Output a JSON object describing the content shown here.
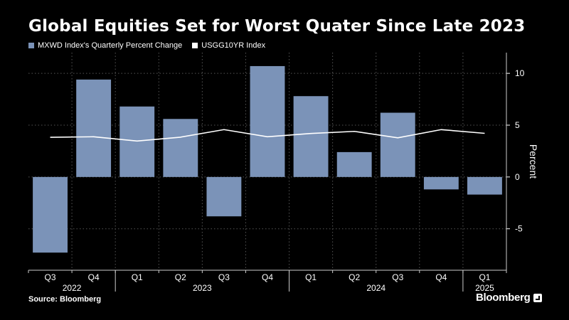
{
  "title": "Global Equities Set for Worst Quater Since Late 2023",
  "legend": [
    {
      "label": "MXWD Index's Quarterly Percent Change",
      "color": "#7b93b8"
    },
    {
      "label": "USGG10YR Index",
      "color": "#ffffff"
    }
  ],
  "source": "Source: Bloomberg",
  "brand": "Bloomberg",
  "colors": {
    "bar": "#7b93b8",
    "line": "#ffffff",
    "grid": "#555555",
    "background": "#000000"
  },
  "chart_data": {
    "type": "bar",
    "title": "Global Equities Set for Worst Quater Since Late 2023",
    "ylabel": "Percent",
    "ylim": [
      -9,
      12
    ],
    "yticks": [
      10,
      5,
      0,
      -5
    ],
    "categories": [
      "Q3",
      "Q4",
      "Q1",
      "Q2",
      "Q3",
      "Q4",
      "Q1",
      "Q2",
      "Q3",
      "Q4",
      "Q1"
    ],
    "years": [
      {
        "label": "2022",
        "from": 0,
        "to": 1
      },
      {
        "label": "2023",
        "from": 2,
        "to": 5
      },
      {
        "label": "2024",
        "from": 6,
        "to": 9
      },
      {
        "label": "2025",
        "from": 10,
        "to": 10
      }
    ],
    "series": [
      {
        "name": "MXWD Index's Quarterly Percent Change",
        "type": "bar",
        "values": [
          -7.3,
          9.4,
          6.8,
          5.6,
          -3.8,
          10.7,
          7.8,
          2.4,
          6.2,
          -1.2,
          -1.7
        ]
      },
      {
        "name": "USGG10YR Index",
        "type": "line",
        "values": [
          3.83,
          3.88,
          3.47,
          3.84,
          4.57,
          3.88,
          4.2,
          4.4,
          3.78,
          4.57,
          4.21
        ]
      }
    ],
    "grid": true,
    "legend_position": "top-left"
  }
}
